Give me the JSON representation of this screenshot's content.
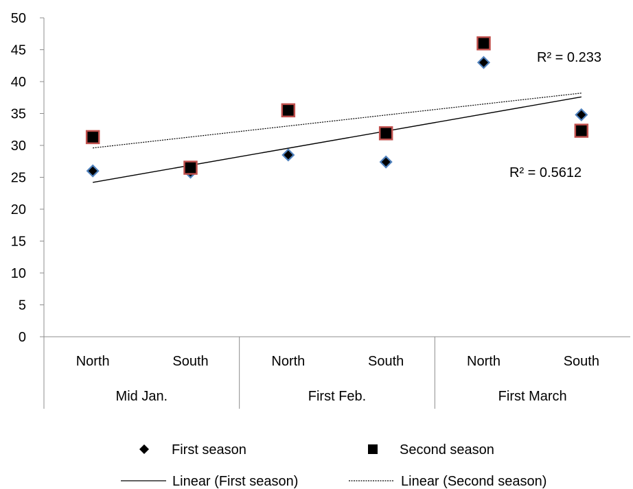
{
  "chart_data": {
    "type": "scatter",
    "title": "",
    "xlabel": "",
    "ylabel": "",
    "ylim": [
      0,
      50
    ],
    "yticks": [
      0,
      5,
      10,
      15,
      20,
      25,
      30,
      35,
      40,
      45,
      50
    ],
    "grid": false,
    "legend_position": "bottom",
    "categories": [
      "North",
      "South",
      "North",
      "South",
      "North",
      "South"
    ],
    "groups": [
      {
        "label": "Mid Jan.",
        "span": 2
      },
      {
        "label": "First  Feb.",
        "span": 2
      },
      {
        "label": "First March",
        "span": 2
      }
    ],
    "series": [
      {
        "name": "First season",
        "marker": "diamond",
        "fill": "#000000",
        "edge": "#4f81bd",
        "values": [
          26.0,
          25.8,
          28.5,
          27.4,
          43.0,
          34.8
        ]
      },
      {
        "name": "Second season",
        "marker": "square",
        "fill": "#000000",
        "edge": "#c0504d",
        "values": [
          31.3,
          26.5,
          35.5,
          31.9,
          46.0,
          32.3
        ]
      }
    ],
    "trendlines": [
      {
        "name": "Linear (First season)",
        "series": "First season",
        "style": "solid",
        "start": 24.2,
        "end": 37.6,
        "r2_label": "R² = 0.5612"
      },
      {
        "name": "Linear (Second season)",
        "series": "Second season",
        "style": "dotted",
        "start": 29.6,
        "end": 38.2,
        "r2_label": "R² = 0.233"
      }
    ]
  }
}
